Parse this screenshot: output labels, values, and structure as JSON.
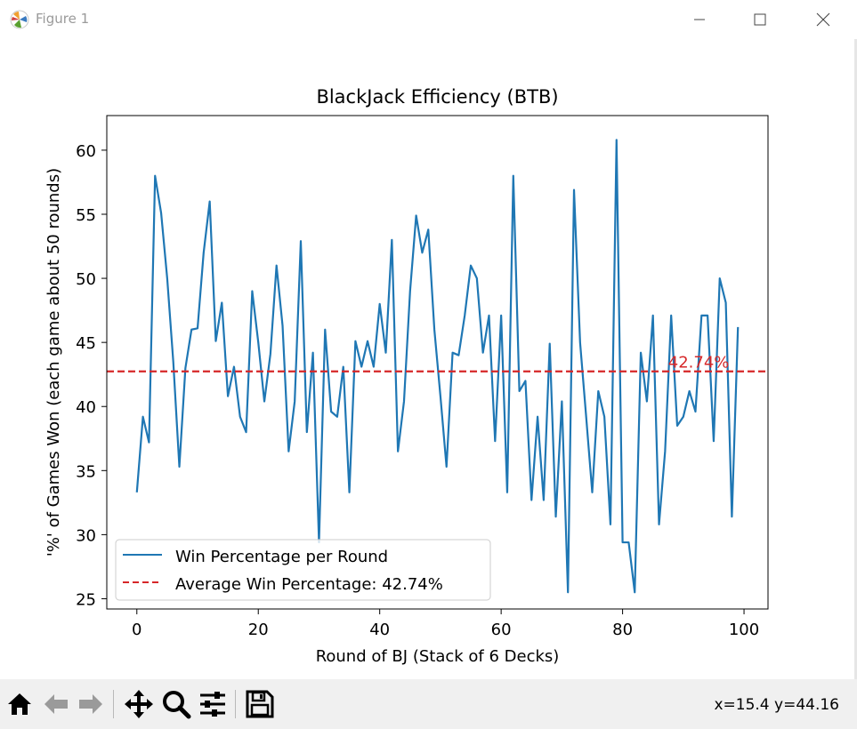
{
  "window": {
    "title": "Figure 1",
    "controls": [
      "minimize",
      "maximize",
      "close"
    ]
  },
  "toolbar": {
    "tools": [
      {
        "name": "home-icon",
        "action": "Reset original view"
      },
      {
        "name": "back-icon",
        "action": "Back to previous view"
      },
      {
        "name": "forward-icon",
        "action": "Forward to next view"
      },
      {
        "name": "pan-icon",
        "action": "Pan axes"
      },
      {
        "name": "zoom-icon",
        "action": "Zoom to rectangle"
      },
      {
        "name": "configure-subplots-icon",
        "action": "Configure subplots"
      },
      {
        "name": "save-icon",
        "action": "Save the figure"
      }
    ],
    "coords": "x=15.4 y=44.16"
  },
  "chart_data": {
    "type": "line",
    "title": "BlackJack Efficiency (BTB)",
    "xlabel": "Round of BJ (Stack of 6 Decks)",
    "ylabel": "'%' of Games Won (each game about 50 rounds)",
    "xlim": [
      -4.95,
      103.95
    ],
    "ylim": [
      24.2,
      62.7
    ],
    "xticks": [
      0,
      20,
      40,
      60,
      80,
      100
    ],
    "yticks": [
      25,
      30,
      35,
      40,
      45,
      50,
      55,
      60
    ],
    "legend_position": "lower left",
    "series": [
      {
        "name": "Win Percentage per Round",
        "color": "#1f77b4",
        "style": "solid",
        "x": [
          0,
          1,
          2,
          3,
          4,
          5,
          6,
          7,
          8,
          9,
          10,
          11,
          12,
          13,
          14,
          15,
          16,
          17,
          18,
          19,
          20,
          21,
          22,
          23,
          24,
          25,
          26,
          27,
          28,
          29,
          30,
          31,
          32,
          33,
          34,
          35,
          36,
          37,
          38,
          39,
          40,
          41,
          42,
          43,
          44,
          45,
          46,
          47,
          48,
          49,
          50,
          51,
          52,
          53,
          54,
          55,
          56,
          57,
          58,
          59,
          60,
          61,
          62,
          63,
          64,
          65,
          66,
          67,
          68,
          69,
          70,
          71,
          72,
          73,
          74,
          75,
          76,
          77,
          78,
          79,
          80,
          81,
          82,
          83,
          84,
          85,
          86,
          87,
          88,
          89,
          90,
          91,
          92,
          93,
          94,
          95,
          96,
          97,
          98,
          99
        ],
        "values": [
          33.3,
          39.2,
          37.2,
          58.0,
          55.1,
          50.0,
          43.5,
          35.3,
          43.0,
          46.0,
          46.1,
          52.0,
          56.0,
          45.1,
          48.1,
          40.8,
          43.1,
          39.2,
          38.0,
          49.0,
          45.0,
          40.4,
          44.1,
          51.0,
          46.3,
          36.5,
          40.4,
          52.9,
          38.0,
          44.2,
          29.4,
          46.0,
          39.6,
          39.2,
          43.1,
          33.3,
          45.1,
          43.1,
          45.1,
          43.1,
          48.0,
          44.2,
          53.0,
          36.5,
          40.4,
          49.0,
          54.9,
          52.0,
          53.8,
          46.0,
          40.8,
          35.3,
          44.2,
          44.0,
          47.1,
          51.0,
          50.0,
          44.2,
          47.1,
          37.3,
          47.1,
          33.3,
          58.0,
          41.2,
          42.0,
          32.7,
          39.2,
          32.7,
          44.9,
          31.4,
          40.4,
          25.5,
          56.9,
          45.0,
          39.2,
          33.3,
          41.2,
          39.2,
          30.8,
          60.8,
          29.4,
          29.4,
          25.5,
          44.2,
          40.4,
          47.1,
          30.8,
          36.5,
          47.1,
          38.5,
          39.2,
          41.2,
          39.6,
          47.1,
          47.1,
          37.3,
          50.0,
          48.1,
          31.4,
          46.2
        ]
      },
      {
        "name": "Average Win Percentage: 42.74%",
        "color": "#d62728",
        "style": "dashed",
        "constant": 42.74
      }
    ],
    "annotations": [
      {
        "text": "42.74%",
        "x": 87.5,
        "y": 42.74,
        "color": "#d62728"
      }
    ]
  }
}
